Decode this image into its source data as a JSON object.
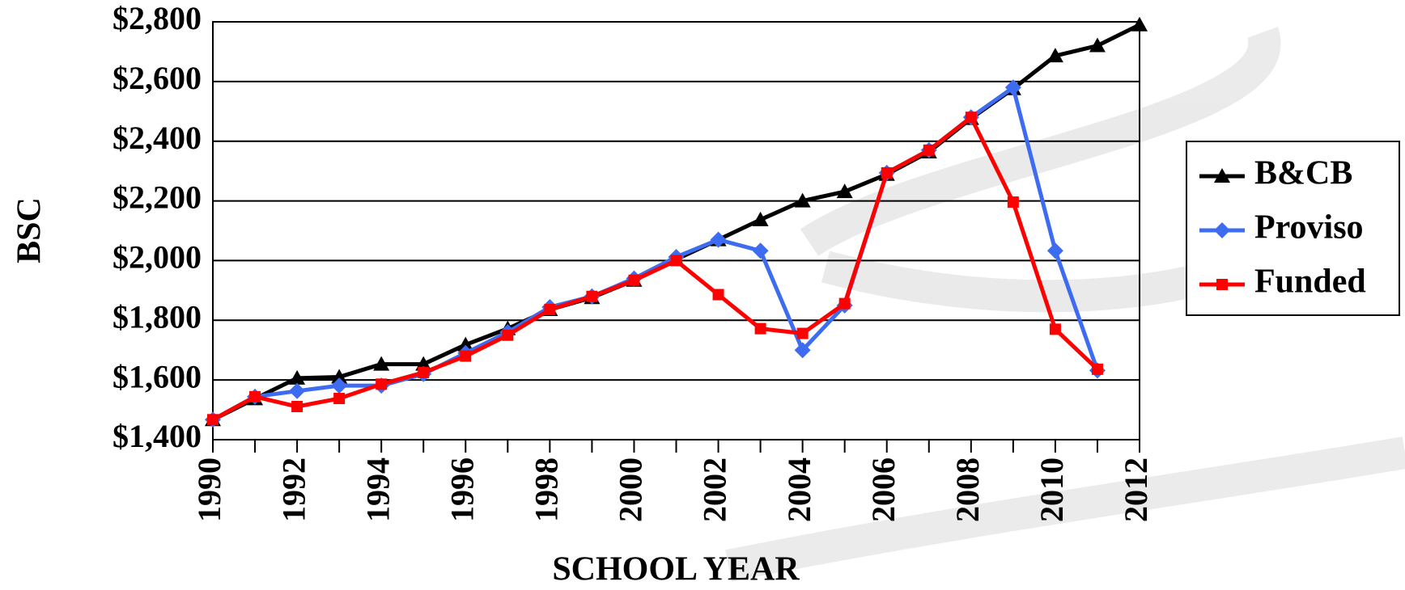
{
  "chart_data": {
    "type": "line",
    "ylabel": "BSC",
    "xlabel": "SCHOOL YEAR",
    "x": [
      1990,
      1991,
      1992,
      1993,
      1994,
      1995,
      1996,
      1997,
      1998,
      1999,
      2000,
      2001,
      2002,
      2003,
      2004,
      2005,
      2006,
      2007,
      2008,
      2009,
      2010,
      2011,
      2012
    ],
    "series": [
      {
        "name": "B&CB",
        "color": "#000000",
        "marker": "triangle",
        "values": [
          1467,
          1537,
          1606,
          1610,
          1653,
          1653,
          1718,
          1772,
          1836,
          1876,
          1934,
          2004,
          2070,
          2137,
          2200,
          2231,
          2289,
          2364,
          2476,
          2576,
          2686,
          2720,
          2790
        ]
      },
      {
        "name": "Proviso",
        "color": "#3d6cf0",
        "marker": "diamond",
        "values": [
          1467,
          1544,
          1563,
          1581,
          1581,
          1620,
          1690,
          1760,
          1844,
          1880,
          1940,
          2012,
          2070,
          2033,
          1700,
          1850,
          2294,
          2370,
          2480,
          2580,
          2033,
          1632,
          null
        ]
      },
      {
        "name": "Funded",
        "color": "#ff0000",
        "marker": "square",
        "values": [
          1467,
          1544,
          1511,
          1538,
          1586,
          1625,
          1680,
          1750,
          1836,
          1880,
          1934,
          2000,
          1886,
          1772,
          1756,
          1856,
          2294,
          2370,
          2480,
          2196,
          1770,
          1636,
          null
        ]
      }
    ],
    "xlim": [
      1990,
      2012
    ],
    "xticks": [
      1990,
      1992,
      1994,
      1996,
      1998,
      2000,
      2002,
      2004,
      2006,
      2008,
      2010,
      2012
    ],
    "ylim": [
      1400,
      2800
    ],
    "yticks": [
      {
        "value": 1400,
        "label": "$1,400"
      },
      {
        "value": 1600,
        "label": "$1,600"
      },
      {
        "value": 1800,
        "label": "$1,800"
      },
      {
        "value": 2000,
        "label": "$2,000"
      },
      {
        "value": 2200,
        "label": "$2,200"
      },
      {
        "value": 2400,
        "label": "$2,400"
      },
      {
        "value": 2600,
        "label": "$2,600"
      },
      {
        "value": 2800,
        "label": "$2,800"
      }
    ],
    "grid": true,
    "legend": "right"
  }
}
